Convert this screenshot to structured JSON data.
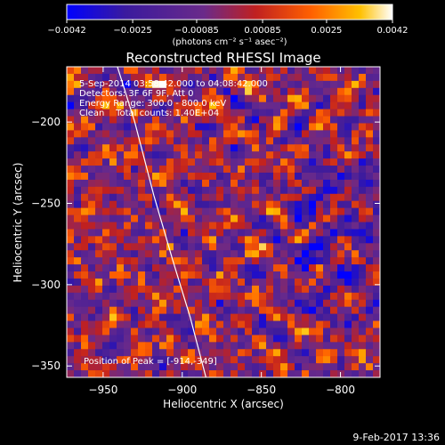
{
  "chart_data": {
    "type": "heatmap",
    "title": "Reconstructed RHESSI Image",
    "xlabel": "Heliocentric X (arcsec)",
    "ylabel": "Heliocentric Y (arcsec)",
    "xlim": [
      -973,
      -775
    ],
    "ylim": [
      -357,
      -166
    ],
    "xticks": [
      -950,
      -900,
      -850,
      -800
    ],
    "xtick_labels": [
      "-950",
      "-900",
      "-850",
      "-800"
    ],
    "yticks": [
      -200,
      -250,
      -300,
      -350
    ],
    "ytick_labels": [
      "-200",
      "-250",
      "-300",
      "-350"
    ],
    "colorbar": {
      "min": -0.0042,
      "max": 0.0042,
      "ticks": [
        -0.0042,
        -0.0025,
        -0.00085,
        0.00085,
        0.0025,
        0.0042
      ],
      "tick_labels": [
        "-0.0042",
        "-0.0025",
        "-0.00085",
        "0.00085",
        "0.0025",
        "0.0042"
      ],
      "label": "(photons cm⁻² s⁻¹ asec⁻²)",
      "colors": [
        "#0000ff",
        "#3a1a9e",
        "#6a2a8a",
        "#c02020",
        "#ff6000",
        "#ffc000",
        "#ffffff"
      ]
    },
    "info_lines": [
      "5-Sep-2014 03:58:42.000 to 04:08:42.000",
      "Detectors: 3F 6F 9F, Att 0",
      "Energy Range: 300.0 - 800.0 keV",
      "Clean    Total counts: 1.40E+04"
    ],
    "peak_label": "Position of Peak = [-914,-349]",
    "limb_curve": [
      [
        -941,
        -166
      ],
      [
        -930,
        -200
      ],
      [
        -918,
        -245
      ],
      [
        -906,
        -285
      ],
      [
        -895,
        -320
      ],
      [
        -885,
        -357
      ]
    ],
    "grid": false
  },
  "footer": {
    "timestamp": "9-Feb-2017 13:36"
  }
}
